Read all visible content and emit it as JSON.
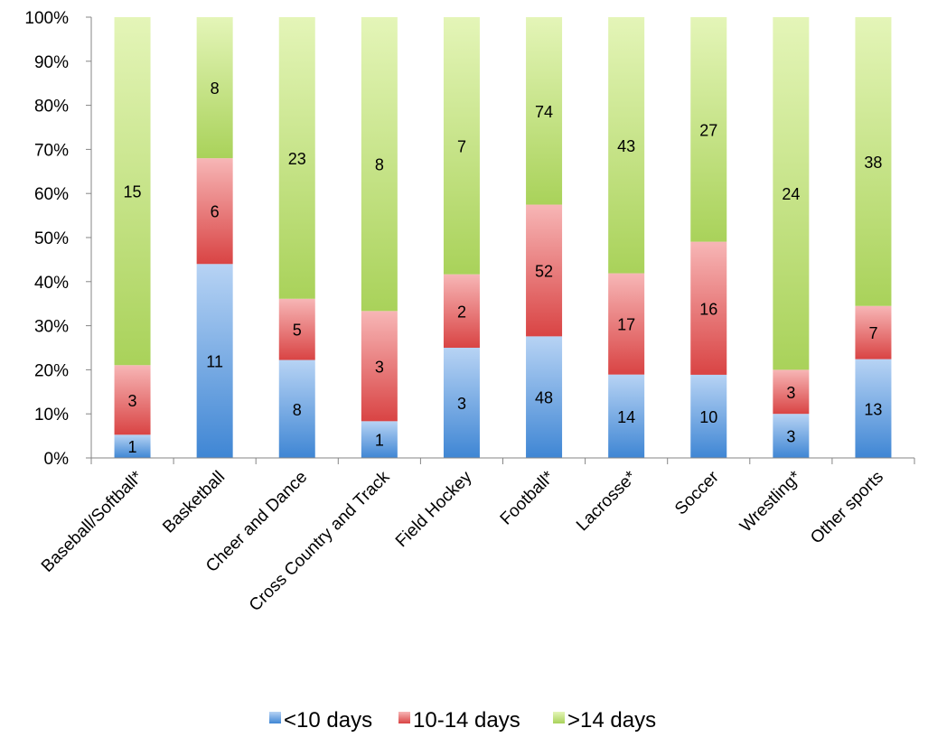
{
  "chart_data": {
    "type": "bar",
    "stacked": "percent",
    "categories": [
      "Baseball/Softball*",
      "Basketball",
      "Cheer and Dance",
      "Cross Country and Track",
      "Field Hockey",
      "Football*",
      "Lacrosse*",
      "Soccer",
      "Wrestling*",
      "Other sports"
    ],
    "series": [
      {
        "name": "<10 days",
        "values": [
          1,
          11,
          8,
          1,
          3,
          48,
          14,
          10,
          3,
          13
        ],
        "color": "#4a8fd8"
      },
      {
        "name": "10-14 days",
        "values": [
          3,
          6,
          5,
          3,
          2,
          52,
          17,
          16,
          3,
          7
        ],
        "color": "#de4f4f"
      },
      {
        "name": ">14 days",
        "values": [
          15,
          8,
          23,
          8,
          7,
          74,
          43,
          27,
          24,
          38
        ],
        "color": "#b3d66a"
      }
    ],
    "y_ticks": [
      "0%",
      "10%",
      "20%",
      "30%",
      "40%",
      "50%",
      "60%",
      "70%",
      "80%",
      "90%",
      "100%"
    ],
    "ylim": [
      0,
      100
    ],
    "legend_position": "bottom",
    "grid": false
  }
}
